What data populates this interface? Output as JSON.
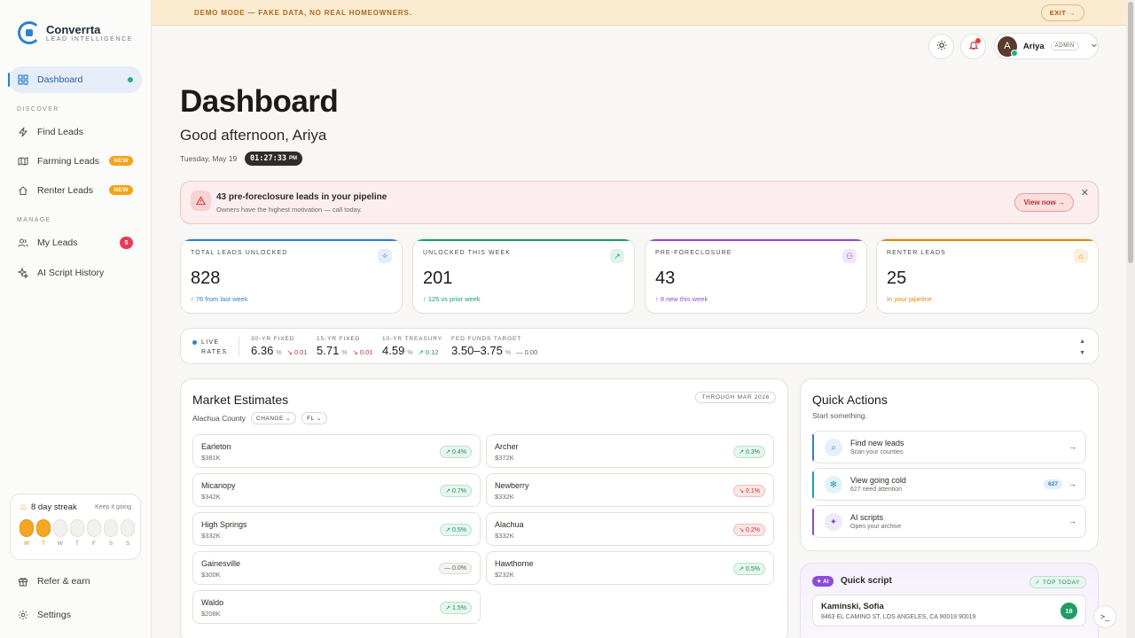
{
  "brand": {
    "name": "Converrta",
    "tagline": "LEAD INTELLIGENCE",
    "color": "#2f7fd1"
  },
  "sidebar": {
    "dashboard": "Dashboard",
    "discover_label": "DISCOVER",
    "manage_label": "MANAGE",
    "discover": [
      {
        "label": "Find Leads",
        "icon": "lightning-icon"
      },
      {
        "label": "Farming Leads",
        "icon": "map-icon",
        "badge": "NEW"
      },
      {
        "label": "Renter Leads",
        "icon": "home-icon",
        "badge": "NEW"
      }
    ],
    "manage": [
      {
        "label": "My Leads",
        "icon": "users-icon",
        "count": "5"
      },
      {
        "label": "AI Script History",
        "icon": "sparkle-icon"
      }
    ],
    "streak": {
      "title": "8 day streak",
      "keep": "Keep it going",
      "days": [
        {
          "label": "M",
          "active": true
        },
        {
          "label": "T",
          "active": true
        },
        {
          "label": "W",
          "active": false
        },
        {
          "label": "T",
          "active": false
        },
        {
          "label": "F",
          "active": false
        },
        {
          "label": "S",
          "active": false
        },
        {
          "label": "S",
          "active": false
        }
      ]
    },
    "refer": "Refer & earn",
    "settings": "Settings"
  },
  "demo": {
    "text": "DEMO MODE — FAKE DATA, NO REAL HOMEOWNERS.",
    "exit": "EXIT →"
  },
  "user": {
    "initial": "A",
    "name": "Ariya",
    "role": "ADMIN"
  },
  "header": {
    "title": "Dashboard",
    "greeting": "Good afternoon, Ariya",
    "date": "Tuesday, May 19",
    "time": "01:27:33",
    "ampm": "PM"
  },
  "alert": {
    "title": "43 pre-foreclosure leads in your pipeline",
    "subtitle": "Owners have the highest motivation — call today.",
    "button": "View now →"
  },
  "stats": [
    {
      "label": "TOTAL LEADS UNLOCKED",
      "value": "828",
      "note": "↑ 76 from last week",
      "color": "#2f7fd1"
    },
    {
      "label": "UNLOCKED THIS WEEK",
      "value": "201",
      "note": "↑ 125 vs prior week",
      "color": "#1a9e74"
    },
    {
      "label": "PRE-FORECLOSURE",
      "value": "43",
      "note": "↑ 8 new this week",
      "color": "#8d4bd6"
    },
    {
      "label": "RENTER LEADS",
      "value": "25",
      "note": "In your pipeline",
      "color": "#e08a00"
    }
  ],
  "rates": {
    "live": "LIVE",
    "live2": "RATES",
    "items": [
      {
        "label": "30-YR FIXED",
        "value": "6.36",
        "unit": "%",
        "delta": "↘ 0.01",
        "dir": "down"
      },
      {
        "label": "15-YR FIXED",
        "value": "5.71",
        "unit": "%",
        "delta": "↘ 0.01",
        "dir": "down"
      },
      {
        "label": "10-YR TREASURY",
        "value": "4.59",
        "unit": "%",
        "delta": "↗ 0.12",
        "dir": "up"
      },
      {
        "label": "FED FUNDS TARGET",
        "value": "3.50–3.75",
        "unit": "%",
        "delta": "— 0.00",
        "dir": "flat"
      }
    ]
  },
  "market": {
    "title": "Market Estimates",
    "through": "THROUGH MAR 2026",
    "county": "Alachua County",
    "change": "CHANGE",
    "state": "FL",
    "cities": [
      {
        "name": "Earleton",
        "price": "$381K",
        "change": "↗ 0.4%",
        "dir": "up"
      },
      {
        "name": "Archer",
        "price": "$372K",
        "change": "↗ 0.3%",
        "dir": "up"
      },
      {
        "name": "Micanopy",
        "price": "$342K",
        "change": "↗ 0.7%",
        "dir": "up"
      },
      {
        "name": "Newberry",
        "price": "$332K",
        "change": "↘ 0.1%",
        "dir": "down"
      },
      {
        "name": "High Springs",
        "price": "$332K",
        "change": "↗ 0.5%",
        "dir": "up"
      },
      {
        "name": "Alachua",
        "price": "$332K",
        "change": "↘ 0.2%",
        "dir": "down"
      },
      {
        "name": "Gainesville",
        "price": "$300K",
        "change": "— 0.0%",
        "dir": "flat"
      },
      {
        "name": "Hawthorne",
        "price": "$232K",
        "change": "↗ 0.5%",
        "dir": "up"
      },
      {
        "name": "Waldo",
        "price": "$208K",
        "change": "↗ 1.5%",
        "dir": "up"
      }
    ]
  },
  "quick_actions": {
    "title": "Quick Actions",
    "subtitle": "Start something.",
    "items": [
      {
        "title": "Find new leads",
        "sub": "Scan your counties",
        "color": "#2f7fd1",
        "icon": "search-icon"
      },
      {
        "title": "View going cold",
        "sub": "627 need attention",
        "count": "627",
        "color": "#1a9ec2",
        "icon": "snowflake-icon"
      },
      {
        "title": "AI scripts",
        "sub": "Open your archive",
        "color": "#8d4bd6",
        "icon": "sparkle-icon"
      }
    ]
  },
  "quick_script": {
    "ai": "✦ AI",
    "title": "Quick script",
    "top": "✓ TOP TODAY",
    "lead_name": "Kaminski, Sofia",
    "lead_addr": "8463 EL CAMINO ST, LOS ANGELES, CA 90019   90019",
    "score": "18"
  }
}
